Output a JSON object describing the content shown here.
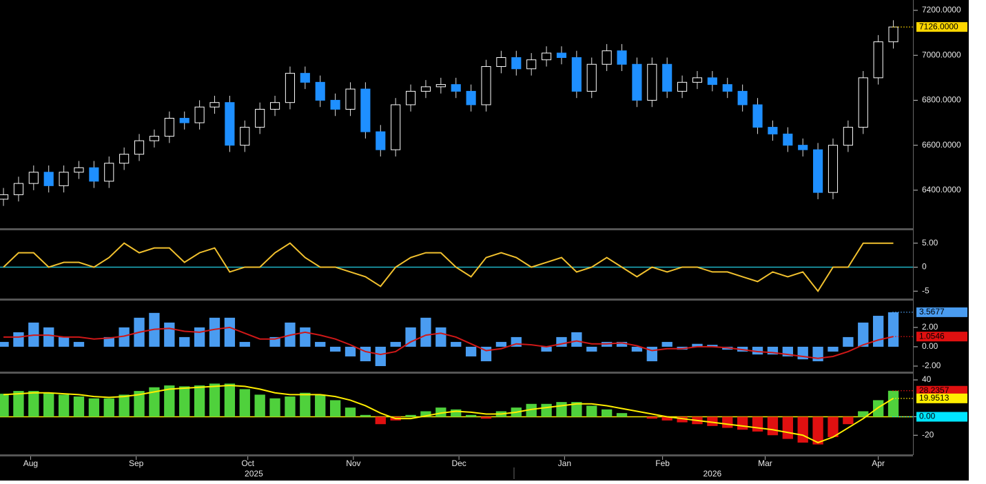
{
  "chart_data": [
    {
      "type": "candlestick",
      "xlim": [
        -0.23,
        60.3
      ],
      "ylim": [
        6234,
        7246
      ],
      "yticks": [
        {
          "value": 6400,
          "label": "6400.0000"
        },
        {
          "value": 6600,
          "label": "6600.0000"
        },
        {
          "value": 6800,
          "label": "6800.0000"
        },
        {
          "value": 7000,
          "label": "7000.0000"
        },
        {
          "value": 7200,
          "label": "7200.0000"
        }
      ],
      "up_color": "#ffffff",
      "down_color": "#1e8fff",
      "open": [
        6360,
        6380,
        6430,
        6480,
        6420,
        6480,
        6500,
        6440,
        6520,
        6560,
        6620,
        6640,
        6720,
        6700,
        6770,
        6790,
        6600,
        6680,
        6760,
        6790,
        6920,
        6880,
        6800,
        6760,
        6850,
        6660,
        6580,
        6780,
        6840,
        6860,
        6870,
        6840,
        6780,
        6950,
        6990,
        6940,
        6980,
        7010,
        6990,
        6840,
        6960,
        7020,
        6960,
        6800,
        6960,
        6840,
        6880,
        6900,
        6870,
        6840,
        6780,
        6680,
        6650,
        6600,
        6580,
        6390,
        6600,
        6680,
        6900,
        7060
      ],
      "high": [
        6410,
        6460,
        6510,
        6510,
        6510,
        6530,
        6530,
        6550,
        6590,
        6650,
        6670,
        6750,
        6750,
        6800,
        6820,
        6820,
        6710,
        6790,
        6820,
        6950,
        6950,
        6910,
        6830,
        6880,
        6880,
        6690,
        6810,
        6870,
        6890,
        6900,
        6900,
        6870,
        6980,
        7020,
        7020,
        7010,
        7040,
        7040,
        7020,
        6990,
        7050,
        7050,
        6990,
        6990,
        6990,
        6910,
        6930,
        6930,
        6900,
        6870,
        6810,
        6710,
        6680,
        6630,
        6610,
        6630,
        6710,
        6930,
        7090,
        7156
      ],
      "low": [
        6330,
        6350,
        6400,
        6390,
        6390,
        6450,
        6410,
        6410,
        6490,
        6530,
        6590,
        6610,
        6670,
        6670,
        6740,
        6570,
        6570,
        6650,
        6730,
        6760,
        6850,
        6770,
        6730,
        6730,
        6630,
        6550,
        6550,
        6750,
        6810,
        6830,
        6810,
        6750,
        6750,
        6920,
        6910,
        6910,
        6950,
        6960,
        6810,
        6810,
        6930,
        6930,
        6770,
        6770,
        6810,
        6810,
        6850,
        6840,
        6810,
        6750,
        6650,
        6620,
        6570,
        6550,
        6360,
        6360,
        6570,
        6650,
        6870,
        7030
      ],
      "close": [
        6380,
        6430,
        6480,
        6420,
        6480,
        6500,
        6440,
        6520,
        6560,
        6620,
        6640,
        6720,
        6700,
        6770,
        6790,
        6600,
        6680,
        6760,
        6790,
        6920,
        6880,
        6800,
        6760,
        6850,
        6660,
        6580,
        6780,
        6840,
        6860,
        6870,
        6840,
        6780,
        6950,
        6990,
        6940,
        6980,
        7010,
        6990,
        6840,
        6960,
        7020,
        6960,
        6800,
        6960,
        6840,
        6880,
        6900,
        6870,
        6840,
        6780,
        6680,
        6650,
        6600,
        6580,
        6390,
        6600,
        6680,
        6900,
        7060,
        7126
      ],
      "markers": [
        {
          "value": 7126,
          "label": "7126.0000",
          "color": "#ffd700"
        }
      ]
    },
    {
      "type": "line",
      "xlim": [
        -0.23,
        60.3
      ],
      "ylim": [
        -6.4,
        7.4
      ],
      "yticks": [
        {
          "value": 5,
          "label": "5.00"
        },
        0,
        -5
      ],
      "zero_color": "#1fb5c8",
      "series": [
        {
          "type": "line",
          "color": "#f2c12e",
          "values": [
            0,
            3,
            3,
            0,
            1,
            1,
            0,
            2,
            5,
            3,
            4,
            4,
            1,
            3,
            4,
            -1,
            0,
            0,
            3,
            5,
            2,
            0,
            0,
            -1,
            -2,
            -4,
            0,
            2,
            3,
            3,
            0,
            -2,
            2,
            3,
            2,
            0,
            1,
            2,
            -1,
            0,
            2,
            0,
            -2,
            0,
            -1,
            0,
            0,
            -1,
            -1,
            -2,
            -3,
            -1,
            -2,
            -1,
            -5,
            0,
            0,
            5,
            5,
            5
          ]
        }
      ]
    },
    {
      "type": "combo",
      "xlim": [
        -0.23,
        60.3
      ],
      "ylim": [
        -2.5,
        4.7
      ],
      "yticks": [
        {
          "value": 2,
          "label": "2.00"
        },
        {
          "value": 0,
          "label": "0.00"
        },
        {
          "value": -2,
          "label": "-2.00"
        }
      ],
      "series": [
        {
          "type": "bar",
          "color": "#4a9cf0",
          "values": [
            0.5,
            1.5,
            2.5,
            2,
            1,
            0.5,
            0,
            1,
            2,
            3,
            3.5,
            2.5,
            1,
            2,
            3,
            3,
            0.5,
            0,
            1,
            2.5,
            2,
            0.5,
            -0.5,
            -1,
            -1.5,
            -2,
            0.5,
            2,
            3,
            2,
            0.5,
            -1,
            -1.5,
            0.5,
            1,
            0,
            -0.5,
            1,
            1.5,
            -0.5,
            0.5,
            0.5,
            -0.5,
            -1.5,
            0.5,
            -0.3,
            0.3,
            0.2,
            -0.3,
            -0.5,
            -0.8,
            -0.8,
            -1,
            -1.3,
            -1.5,
            -0.5,
            1,
            2.5,
            3.2,
            3.5677
          ]
        },
        {
          "type": "line",
          "color": "#d01818",
          "values": [
            1,
            1,
            1.2,
            1.2,
            1,
            1,
            0.8,
            0.9,
            1.1,
            1.5,
            1.8,
            1.9,
            1.6,
            1.5,
            1.8,
            2,
            1.4,
            0.8,
            0.8,
            1.2,
            1.5,
            1.2,
            0.8,
            0.2,
            -0.5,
            -0.8,
            -0.5,
            0.5,
            1.2,
            1.4,
            1,
            0.3,
            -0.4,
            -0.2,
            0.3,
            0.2,
            0,
            0.3,
            0.6,
            0.3,
            0.3,
            0.4,
            0.1,
            -0.4,
            -0.2,
            -0.2,
            0,
            0,
            -0.1,
            -0.3,
            -0.5,
            -0.6,
            -0.8,
            -1,
            -1.2,
            -1,
            -0.5,
            0.2,
            0.7,
            1.0546
          ]
        }
      ],
      "markers": [
        {
          "value": 3.5677,
          "color": "#4a9cf0"
        },
        {
          "value": 1.0546,
          "color": "#e01010"
        }
      ]
    },
    {
      "type": "combo",
      "xlim": [
        -0.23,
        60.3
      ],
      "ylim": [
        -40,
        46
      ],
      "yticks": [
        40,
        {
          "value": 0,
          "label": "0.00"
        },
        -20
      ],
      "zero_color": "#ffee00",
      "series": [
        {
          "type": "bar",
          "color": "#4fd13c",
          "negative_color": "#e01010",
          "values": [
            25,
            28,
            28,
            26,
            24,
            22,
            20,
            20,
            24,
            28,
            32,
            34,
            33,
            34,
            36,
            36,
            30,
            24,
            20,
            22,
            26,
            24,
            18,
            10,
            2,
            -8,
            -4,
            2,
            6,
            10,
            8,
            2,
            -2,
            6,
            10,
            14,
            14,
            16,
            16,
            12,
            8,
            4,
            0,
            -2,
            -4,
            -6,
            -8,
            -10,
            -12,
            -14,
            -16,
            -20,
            -24,
            -28,
            -30,
            -22,
            -8,
            6,
            18,
            28.2357
          ]
        },
        {
          "type": "line",
          "color": "#ffee00",
          "values": [
            24,
            25,
            26,
            26,
            25,
            24,
            22,
            21,
            22,
            24,
            27,
            30,
            31,
            32,
            33,
            34,
            33,
            30,
            26,
            24,
            24,
            24,
            22,
            18,
            12,
            4,
            -2,
            -2,
            1,
            4,
            6,
            5,
            3,
            3,
            5,
            8,
            10,
            12,
            14,
            14,
            12,
            9,
            6,
            3,
            0,
            -2,
            -4,
            -6,
            -8,
            -10,
            -12,
            -14,
            -17,
            -20,
            -28,
            -22,
            -12,
            -2,
            10,
            19.9513
          ]
        }
      ],
      "markers": [
        {
          "value": 28.2357,
          "color": "#e01010"
        },
        {
          "value": 19.9513,
          "color": "#ffee00"
        },
        {
          "value": 0,
          "label": "0.00",
          "color": "#00e5ff"
        }
      ],
      "xticks": [
        {
          "value": 1.8,
          "label": "Aug"
        },
        {
          "value": 8.8,
          "label": "Sep"
        },
        {
          "value": 16.2,
          "label": "Oct"
        },
        {
          "value": 23.2,
          "label": "Nov"
        },
        {
          "value": 30.2,
          "label": "Dec"
        },
        {
          "value": 37.2,
          "label": "Jan"
        },
        {
          "value": 43.7,
          "label": "Feb"
        },
        {
          "value": 50.5,
          "label": "Mar"
        },
        {
          "value": 58.0,
          "label": "Apr"
        }
      ],
      "annotations": [
        {
          "x": 16.6,
          "text": "2025"
        },
        {
          "x": 47.0,
          "text": "2026"
        }
      ]
    }
  ]
}
